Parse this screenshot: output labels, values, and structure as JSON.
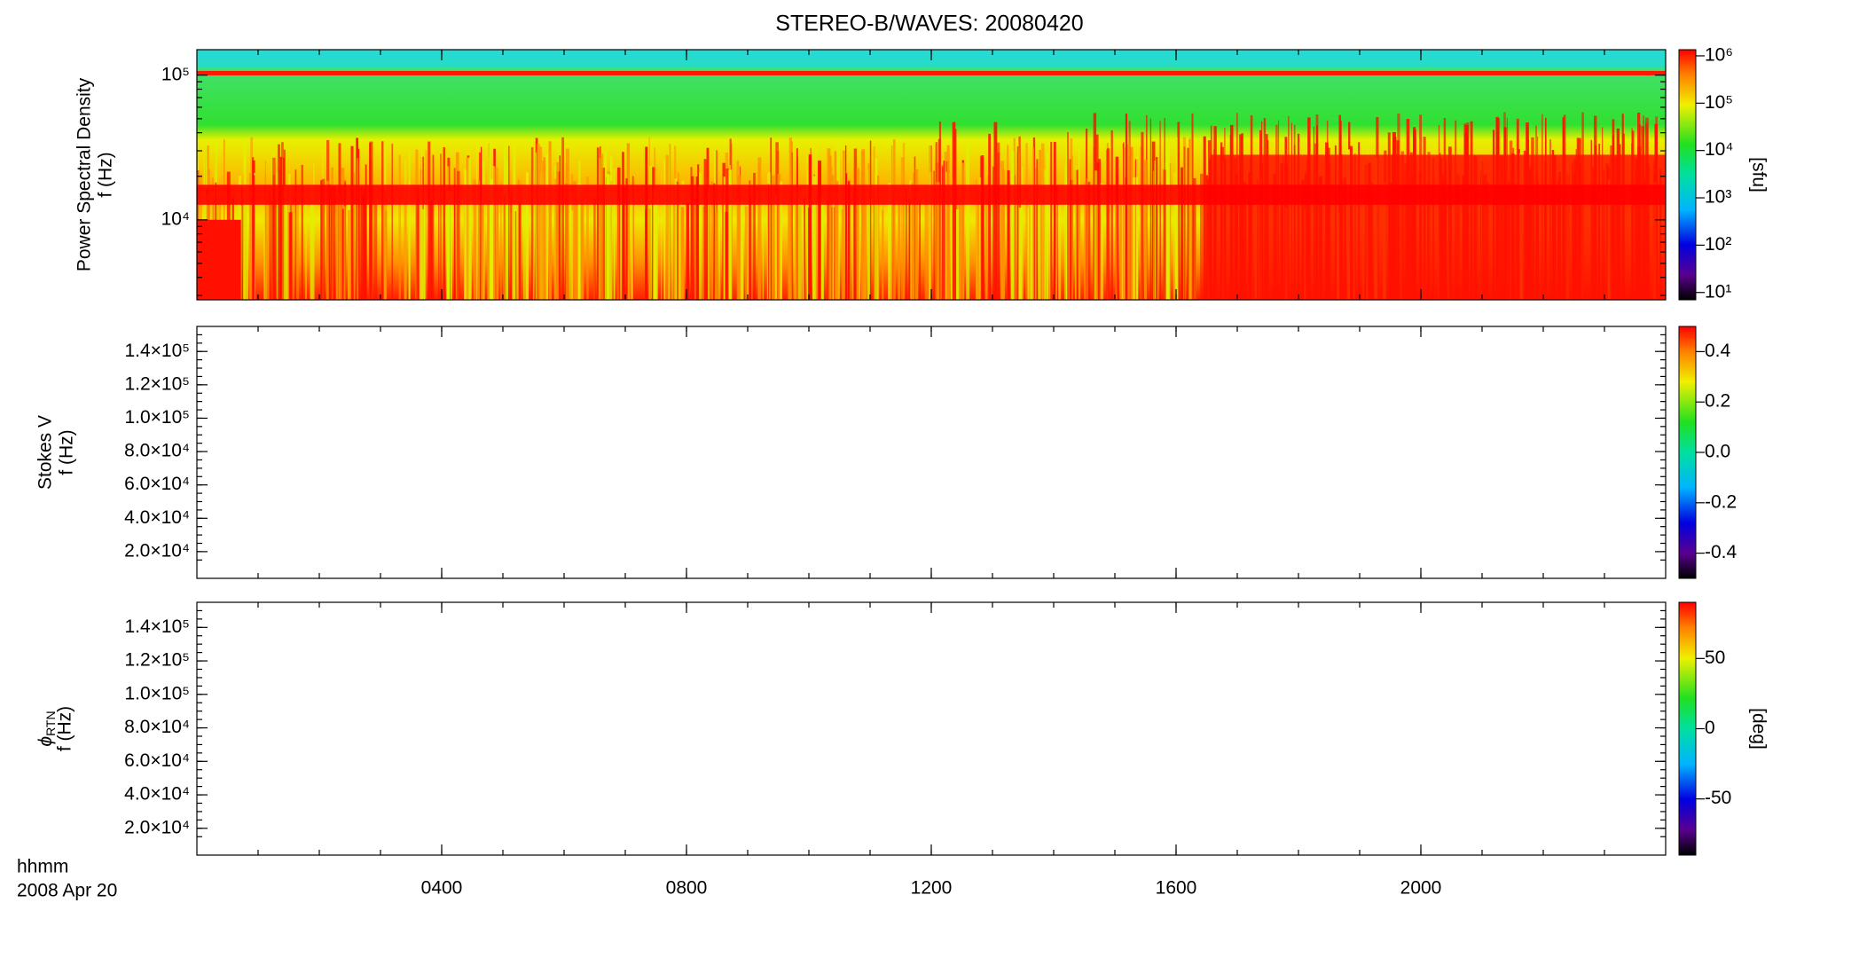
{
  "chart_data": [
    {
      "type": "heatmap",
      "title": "STEREO-B/WAVES: 20080420",
      "ylabel": [
        "Power Spectral Density",
        "f (Hz)"
      ],
      "ylim": [
        2800,
        150000
      ],
      "ylog": true,
      "yticks": [
        {
          "value": 10000,
          "label": "10⁴"
        },
        {
          "value": 100000,
          "label": "10⁵"
        }
      ],
      "xlim": [
        0,
        2400
      ],
      "xticks": [
        {
          "value": 400,
          "label": "0400"
        },
        {
          "value": 800,
          "label": "0800"
        },
        {
          "value": 1200,
          "label": "1200"
        },
        {
          "value": 1600,
          "label": "1600"
        },
        {
          "value": 2000,
          "label": "2000"
        }
      ],
      "clim": [
        7,
        1350000
      ],
      "clog": true,
      "clabel": "[sfu]",
      "cticks": [
        {
          "value": 10,
          "label": "10¹"
        },
        {
          "value": 100,
          "label": "10²"
        },
        {
          "value": 1000,
          "label": "10³"
        },
        {
          "value": 10000,
          "label": "10⁴"
        },
        {
          "value": 100000,
          "label": "10⁵"
        },
        {
          "value": 1000000,
          "label": "10⁶"
        }
      ]
    },
    {
      "type": "heatmap",
      "ylabel": [
        "Stokes V",
        "f (Hz)"
      ],
      "ylim": [
        4000,
        155000
      ],
      "ylog": false,
      "yticks": [
        {
          "value": 20000,
          "label": "2.0×10⁴"
        },
        {
          "value": 40000,
          "label": "4.0×10⁴"
        },
        {
          "value": 60000,
          "label": "6.0×10⁴"
        },
        {
          "value": 80000,
          "label": "8.0×10⁴"
        },
        {
          "value": 100000,
          "label": "1.0×10⁵"
        },
        {
          "value": 120000,
          "label": "1.2×10⁵"
        },
        {
          "value": 140000,
          "label": "1.4×10⁵"
        }
      ],
      "xlim": [
        0,
        2400
      ],
      "xticks": [
        {
          "value": 400,
          "label": "0400"
        },
        {
          "value": 800,
          "label": "0800"
        },
        {
          "value": 1200,
          "label": "1200"
        },
        {
          "value": 1600,
          "label": "1600"
        },
        {
          "value": 2000,
          "label": "2000"
        }
      ],
      "clim": [
        -0.5,
        0.5
      ],
      "clog": false,
      "cticks": [
        -0.4,
        -0.2,
        {
          "value": 0,
          "label": "0.0"
        },
        0.2,
        0.4
      ]
    },
    {
      "type": "heatmap",
      "ylabel_symbol": "ϕ",
      "ylabel_subscript": "RTN",
      "ylabel": [
        "f (Hz)"
      ],
      "ylim": [
        4000,
        155000
      ],
      "ylog": false,
      "yticks": [
        {
          "value": 20000,
          "label": "2.0×10⁴"
        },
        {
          "value": 40000,
          "label": "4.0×10⁴"
        },
        {
          "value": 60000,
          "label": "6.0×10⁴"
        },
        {
          "value": 80000,
          "label": "8.0×10⁴"
        },
        {
          "value": 100000,
          "label": "1.0×10⁵"
        },
        {
          "value": 120000,
          "label": "1.2×10⁵"
        },
        {
          "value": 140000,
          "label": "1.4×10⁵"
        }
      ],
      "xlim": [
        0,
        2400
      ],
      "xticks": [
        {
          "value": 400,
          "label": "0400"
        },
        {
          "value": 800,
          "label": "0800"
        },
        {
          "value": 1200,
          "label": "1200"
        },
        {
          "value": 1600,
          "label": "1600"
        },
        {
          "value": 2000,
          "label": "2000"
        }
      ],
      "xlabel": [
        "hhmm",
        "2008 Apr 20"
      ],
      "clim": [
        -90,
        90
      ],
      "clog": false,
      "clabel": "[deg]",
      "cticks": [
        -50,
        0,
        50
      ]
    }
  ]
}
